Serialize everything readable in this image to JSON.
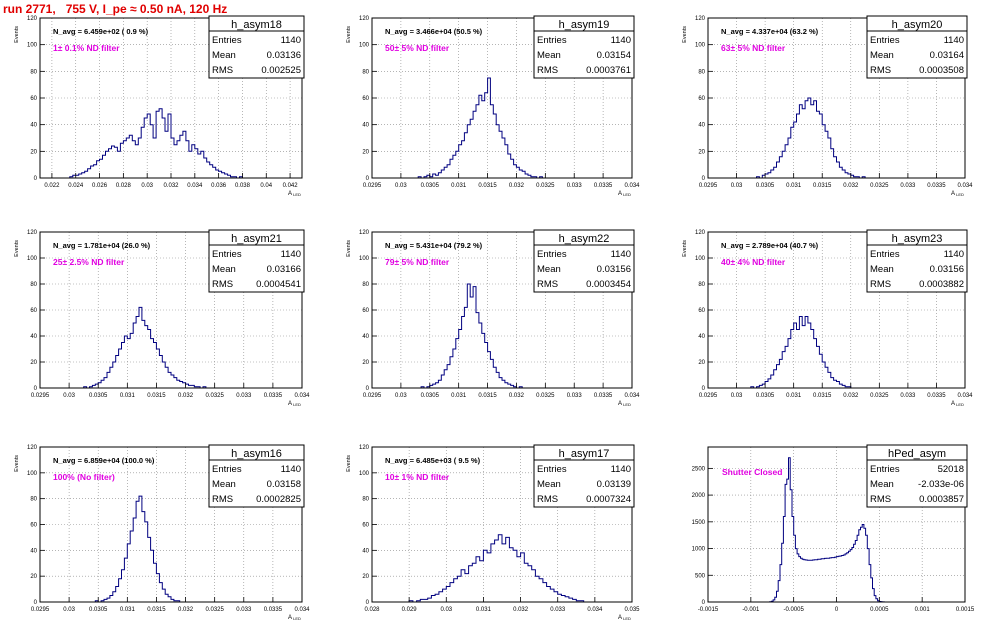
{
  "run_title": "run 2771,   755 V, I_pe ≈ 0.50 nA, 120 Hz",
  "colors": {
    "title": "#e00000",
    "annotation": "#e000e0",
    "histogram": "#000080",
    "grid": "#888888",
    "frame": "#000000"
  },
  "chart_data": [
    {
      "type": "histogram",
      "name": "h_asym18",
      "n_avg_label": "N_avg = 6.459e+02 ( 0.9 %)",
      "annotation": "1± 0.1% ND filter",
      "stats": {
        "entries": "1140",
        "mean": "0.03136",
        "rms": "0.002525"
      },
      "ylabel": "Events",
      "xlabel": "A_LED",
      "xlim": [
        0.021,
        0.043
      ],
      "ylim": [
        0,
        120
      ],
      "xticks": [
        "0.022",
        "0.024",
        "0.026",
        "0.028",
        "0.03",
        "0.032",
        "0.034",
        "0.036",
        "0.038",
        "0.04",
        "0.042"
      ],
      "xtick_values": [
        0.022,
        0.024,
        0.026,
        0.028,
        0.03,
        0.032,
        0.034,
        0.036,
        0.038,
        0.04,
        0.042
      ],
      "yticks": [
        "0",
        "20",
        "40",
        "60",
        "80",
        "100",
        "120"
      ],
      "bins": {
        "xmin": 0.021,
        "width": 0.00025,
        "counts": [
          0,
          0,
          0,
          0,
          0,
          0,
          0,
          0,
          0,
          0,
          1,
          2,
          2,
          3,
          4,
          5,
          7,
          9,
          10,
          13,
          14,
          17,
          20,
          22,
          24,
          23,
          20,
          26,
          28,
          30,
          32,
          28,
          25,
          30,
          38,
          45,
          48,
          40,
          30,
          50,
          52,
          45,
          35,
          48,
          30,
          25,
          28,
          32,
          35,
          28,
          20,
          25,
          22,
          18,
          20,
          15,
          12,
          10,
          8,
          6,
          5,
          4,
          3,
          2,
          1,
          1,
          0,
          1,
          0,
          0,
          0,
          0,
          0,
          0,
          0,
          0,
          0,
          0,
          0,
          0,
          0,
          0,
          0,
          0,
          0,
          0,
          0,
          0
        ]
      }
    },
    {
      "type": "histogram",
      "name": "h_asym19",
      "n_avg_label": "N_avg = 3.466e+04 (50.5 %)",
      "annotation": "50± 5% ND filter",
      "stats": {
        "entries": "1140",
        "mean": "0.03154",
        "rms": "0.0003761"
      },
      "ylabel": "Events",
      "xlabel": "A_LED",
      "xlim": [
        0.0295,
        0.034
      ],
      "ylim": [
        0,
        120
      ],
      "xticks": [
        "0.0295",
        "0.03",
        "0.0305",
        "0.031",
        "0.0315",
        "0.032",
        "0.0325",
        "0.033",
        "0.0335",
        "0.034"
      ],
      "xtick_values": [
        0.0295,
        0.03,
        0.0305,
        0.031,
        0.0315,
        0.032,
        0.0325,
        0.033,
        0.0335,
        0.034
      ],
      "yticks": [
        "0",
        "20",
        "40",
        "60",
        "80",
        "100",
        "120"
      ],
      "bins": {
        "xmin": 0.0302,
        "width": 5e-05,
        "counts": [
          0,
          0,
          1,
          0,
          1,
          2,
          1,
          3,
          2,
          4,
          6,
          8,
          10,
          14,
          17,
          20,
          25,
          28,
          34,
          40,
          44,
          50,
          55,
          62,
          58,
          64,
          75,
          55,
          48,
          40,
          35,
          30,
          25,
          18,
          14,
          10,
          8,
          6,
          5,
          3,
          2,
          1,
          1,
          0,
          1,
          0,
          0,
          0
        ]
      }
    },
    {
      "type": "histogram",
      "name": "h_asym20",
      "n_avg_label": "N_avg = 4.337e+04 (63.2 %)",
      "annotation": "63± 5% ND filter",
      "stats": {
        "entries": "1140",
        "mean": "0.03164",
        "rms": "0.0003508"
      },
      "ylabel": "Events",
      "xlabel": "A_LED",
      "xlim": [
        0.0295,
        0.034
      ],
      "ylim": [
        0,
        120
      ],
      "xticks": [
        "0.0295",
        "0.03",
        "0.0305",
        "0.031",
        "0.0315",
        "0.032",
        "0.0325",
        "0.033",
        "0.0335",
        "0.034"
      ],
      "xtick_values": [
        0.0295,
        0.03,
        0.0305,
        0.031,
        0.0315,
        0.032,
        0.0325,
        0.033,
        0.0335,
        0.034
      ],
      "yticks": [
        "0",
        "20",
        "40",
        "60",
        "80",
        "100",
        "120"
      ],
      "bins": {
        "xmin": 0.0303,
        "width": 5e-05,
        "counts": [
          0,
          1,
          0,
          2,
          3,
          4,
          6,
          8,
          12,
          16,
          20,
          25,
          30,
          38,
          42,
          48,
          55,
          52,
          58,
          60,
          55,
          58,
          50,
          48,
          40,
          35,
          30,
          22,
          16,
          12,
          8,
          6,
          4,
          3,
          2,
          1,
          1,
          0,
          1,
          0
        ]
      }
    },
    {
      "type": "histogram",
      "name": "h_asym21",
      "n_avg_label": "N_avg = 1.781e+04 (26.0 %)",
      "annotation": "25± 2.5% ND filter",
      "stats": {
        "entries": "1140",
        "mean": "0.03166",
        "rms": "0.0004541"
      },
      "ylabel": "Events",
      "xlabel": "A_LED",
      "xlim": [
        0.0295,
        0.034
      ],
      "ylim": [
        0,
        120
      ],
      "xticks": [
        "0.0295",
        "0.03",
        "0.0305",
        "0.031",
        "0.0315",
        "0.032",
        "0.0325",
        "0.033",
        "0.0335",
        "0.034"
      ],
      "xtick_values": [
        0.0295,
        0.03,
        0.0305,
        0.031,
        0.0315,
        0.032,
        0.0325,
        0.033,
        0.0335,
        0.034
      ],
      "yticks": [
        "0",
        "20",
        "40",
        "60",
        "80",
        "100",
        "120"
      ],
      "bins": {
        "xmin": 0.0302,
        "width": 5e-05,
        "counts": [
          0,
          1,
          0,
          1,
          2,
          3,
          4,
          6,
          8,
          12,
          16,
          20,
          25,
          30,
          35,
          40,
          38,
          42,
          50,
          55,
          62,
          52,
          48,
          45,
          38,
          35,
          30,
          25,
          20,
          16,
          12,
          10,
          8,
          6,
          5,
          4,
          3,
          2,
          2,
          1,
          1,
          0,
          1,
          0,
          0
        ]
      }
    },
    {
      "type": "histogram",
      "name": "h_asym22",
      "n_avg_label": "N_avg = 5.431e+04 (79.2 %)",
      "annotation": "79± 5% ND filter",
      "stats": {
        "entries": "1140",
        "mean": "0.03156",
        "rms": "0.0003454"
      },
      "ylabel": "Events",
      "xlabel": "A_LED",
      "xlim": [
        0.0295,
        0.034
      ],
      "ylim": [
        0,
        120
      ],
      "xticks": [
        "0.0295",
        "0.03",
        "0.0305",
        "0.031",
        "0.0315",
        "0.032",
        "0.0325",
        "0.033",
        "0.0335",
        "0.034"
      ],
      "xtick_values": [
        0.0295,
        0.03,
        0.0305,
        0.031,
        0.0315,
        0.032,
        0.0325,
        0.033,
        0.0335,
        0.034
      ],
      "yticks": [
        "0",
        "20",
        "40",
        "60",
        "80",
        "100",
        "120"
      ],
      "bins": {
        "xmin": 0.0303,
        "width": 5e-05,
        "counts": [
          0,
          1,
          0,
          1,
          2,
          3,
          4,
          6,
          10,
          14,
          18,
          24,
          30,
          38,
          45,
          55,
          62,
          80,
          70,
          78,
          58,
          50,
          42,
          35,
          28,
          22,
          16,
          12,
          8,
          6,
          4,
          3,
          2,
          1,
          0,
          1,
          0
        ]
      }
    },
    {
      "type": "histogram",
      "name": "h_asym23",
      "n_avg_label": "N_avg = 2.789e+04 (40.7 %)",
      "annotation": "40± 4% ND filter",
      "stats": {
        "entries": "1140",
        "mean": "0.03156",
        "rms": "0.0003882"
      },
      "ylabel": "Events",
      "xlabel": "A_LED",
      "xlim": [
        0.0295,
        0.034
      ],
      "ylim": [
        0,
        120
      ],
      "xticks": [
        "0.0295",
        "0.03",
        "0.0305",
        "0.031",
        "0.0315",
        "0.032",
        "0.0325",
        "0.033",
        "0.0335",
        "0.034"
      ],
      "xtick_values": [
        0.0295,
        0.03,
        0.0305,
        0.031,
        0.0315,
        0.032,
        0.0325,
        0.033,
        0.0335,
        0.034
      ],
      "yticks": [
        "0",
        "20",
        "40",
        "60",
        "80",
        "100",
        "120"
      ],
      "bins": {
        "xmin": 0.0302,
        "width": 5e-05,
        "counts": [
          0,
          1,
          0,
          1,
          2,
          3,
          5,
          7,
          10,
          14,
          18,
          22,
          28,
          32,
          38,
          45,
          50,
          45,
          55,
          48,
          55,
          50,
          45,
          38,
          32,
          26,
          20,
          16,
          12,
          8,
          6,
          5,
          3,
          2,
          1,
          1,
          0,
          0
        ]
      }
    },
    {
      "type": "histogram",
      "name": "h_asym16",
      "n_avg_label": "N_avg = 6.859e+04 (100.0 %)",
      "annotation": "100% (No filter)",
      "stats": {
        "entries": "1140",
        "mean": "0.03158",
        "rms": "0.0002825"
      },
      "ylabel": "Events",
      "xlabel": "A_LED",
      "xlim": [
        0.0295,
        0.034
      ],
      "ylim": [
        0,
        120
      ],
      "xticks": [
        "0.0295",
        "0.03",
        "0.0305",
        "0.031",
        "0.0315",
        "0.032",
        "0.0325",
        "0.033",
        "0.0335",
        "0.034"
      ],
      "xtick_values": [
        0.0295,
        0.03,
        0.0305,
        0.031,
        0.0315,
        0.032,
        0.0325,
        0.033,
        0.0335,
        0.034
      ],
      "yticks": [
        "0",
        "20",
        "40",
        "60",
        "80",
        "100",
        "120"
      ],
      "bins": {
        "xmin": 0.0304,
        "width": 5e-05,
        "counts": [
          0,
          1,
          0,
          1,
          2,
          3,
          5,
          8,
          12,
          18,
          25,
          34,
          45,
          55,
          65,
          78,
          82,
          70,
          62,
          50,
          40,
          30,
          22,
          15,
          10,
          6,
          4,
          2,
          1,
          1,
          0
        ]
      }
    },
    {
      "type": "histogram",
      "name": "h_asym17",
      "n_avg_label": "N_avg = 6.485e+03 ( 9.5 %)",
      "annotation": "10± 1% ND filter",
      "stats": {
        "entries": "1140",
        "mean": "0.03139",
        "rms": "0.0007324"
      },
      "ylabel": "Events",
      "xlabel": "A_LED",
      "xlim": [
        0.028,
        0.035
      ],
      "ylim": [
        0,
        120
      ],
      "xticks": [
        "0.028",
        "0.029",
        "0.03",
        "0.031",
        "0.032",
        "0.033",
        "0.034",
        "0.035"
      ],
      "xtick_values": [
        0.028,
        0.029,
        0.03,
        0.031,
        0.032,
        0.033,
        0.034,
        0.035
      ],
      "yticks": [
        "0",
        "20",
        "40",
        "60",
        "80",
        "100",
        "120"
      ],
      "bins": {
        "xmin": 0.0289,
        "width": 0.0001,
        "counts": [
          0,
          1,
          0,
          1,
          2,
          2,
          3,
          5,
          6,
          8,
          10,
          12,
          15,
          18,
          20,
          25,
          22,
          28,
          30,
          35,
          32,
          40,
          38,
          45,
          48,
          52,
          45,
          50,
          42,
          40,
          35,
          38,
          30,
          28,
          25,
          20,
          18,
          15,
          12,
          10,
          8,
          6,
          5,
          4,
          3,
          2,
          1,
          1,
          0
        ]
      }
    },
    {
      "type": "histogram",
      "name": "hPed_asym",
      "n_avg_label": "",
      "annotation": "Shutter Closed",
      "stats": {
        "entries": "52018",
        "mean": "-2.033e-06",
        "rms": "0.0003857"
      },
      "ylabel": "",
      "xlabel": "",
      "xlim": [
        -0.0015,
        0.0015
      ],
      "ylim": [
        0,
        2900
      ],
      "xticks": [
        "-0.0015",
        "-0.001",
        "-0.0005",
        "0",
        "0.0005",
        "0.001",
        "0.0015"
      ],
      "xtick_values": [
        -0.0015,
        -0.001,
        -0.0005,
        0,
        0.0005,
        0.001,
        0.0015
      ],
      "yticks": [
        "0",
        "500",
        "1000",
        "1500",
        "2000",
        "2500"
      ],
      "ytick_values": [
        0,
        500,
        1000,
        1500,
        2000,
        2500
      ],
      "bins": {
        "xmin": -0.0008,
        "width": 2e-05,
        "counts": [
          0,
          5,
          15,
          40,
          90,
          200,
          400,
          700,
          1100,
          1600,
          2200,
          2300,
          2700,
          2100,
          1600,
          1250,
          1000,
          900,
          850,
          820,
          800,
          790,
          785,
          780,
          780,
          780,
          785,
          790,
          790,
          800,
          800,
          810,
          810,
          815,
          820,
          820,
          825,
          830,
          830,
          840,
          850,
          855,
          860,
          870,
          880,
          900,
          920,
          950,
          980,
          1020,
          1080,
          1150,
          1250,
          1350,
          1400,
          1450,
          1380,
          1250,
          1000,
          700,
          450,
          250,
          120,
          60,
          25,
          10,
          3,
          1,
          0
        ]
      }
    }
  ]
}
